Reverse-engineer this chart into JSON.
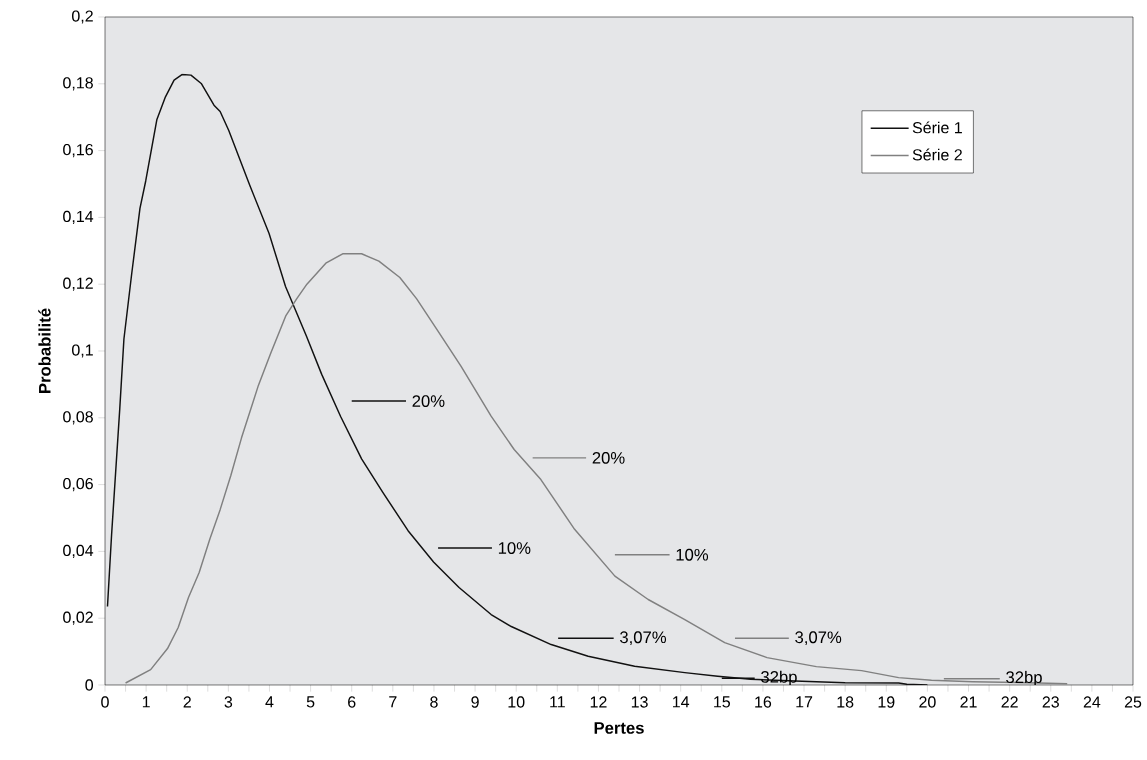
{
  "chart_data": {
    "type": "line",
    "xlabel": "Pertes",
    "ylabel": "Probabilité",
    "xlim": [
      0,
      25
    ],
    "ylim": [
      0,
      0.2
    ],
    "xticks": [
      0,
      {
        "value": 0.5,
        "label": null
      },
      1,
      {
        "value": 1.5,
        "label": null
      },
      2,
      {
        "value": 2.5,
        "label": null
      },
      3,
      {
        "value": 3.5,
        "label": null
      },
      4,
      {
        "value": 4.5,
        "label": null
      },
      5,
      {
        "value": 5.5,
        "label": null
      },
      6,
      {
        "value": 6.5,
        "label": null
      },
      7,
      {
        "value": 7.5,
        "label": null
      },
      8,
      {
        "value": 8.5,
        "label": null
      },
      9,
      {
        "value": 9.5,
        "label": null
      },
      10,
      {
        "value": 10.5,
        "label": null
      },
      11,
      {
        "value": 11.5,
        "label": null
      },
      12,
      {
        "value": 12.5,
        "label": null
      },
      13,
      {
        "value": 13.5,
        "label": null
      },
      14,
      {
        "value": 14.5,
        "label": null
      },
      15,
      {
        "value": 15.5,
        "label": null
      },
      16,
      {
        "value": 16.5,
        "label": null
      },
      17,
      {
        "value": 17.5,
        "label": null
      },
      18,
      {
        "value": 18.5,
        "label": null
      },
      19,
      {
        "value": 19.5,
        "label": null
      },
      20,
      {
        "value": 20.5,
        "label": null
      },
      21,
      {
        "value": 21.5,
        "label": null
      },
      22,
      {
        "value": 22.5,
        "label": null
      },
      23,
      {
        "value": 23.5,
        "label": null
      },
      24,
      {
        "value": 24.5,
        "label": null
      },
      25
    ],
    "yticks": [
      0,
      {
        "value": 0.02,
        "label": "0,02"
      },
      {
        "value": 0.04,
        "label": "0,04"
      },
      {
        "value": 0.06,
        "label": "0,06"
      },
      {
        "value": 0.08,
        "label": "0,08"
      },
      {
        "value": 0.1,
        "label": "0,1"
      },
      {
        "value": 0.12,
        "label": "0,12"
      },
      {
        "value": 0.14,
        "label": "0,14"
      },
      {
        "value": 0.16,
        "label": "0,16"
      },
      {
        "value": 0.18,
        "label": "0,18"
      },
      {
        "value": 0.2,
        "label": "0,2"
      }
    ],
    "grid": false,
    "legend": "top right",
    "marker": "none",
    "line_style": "solid",
    "series": [
      {
        "name": "Série 1",
        "color": "#111111",
        "x": [
          0.06,
          0.16,
          0.36,
          0.46,
          0.65,
          0.85,
          0.99,
          1.26,
          1.47,
          1.68,
          1.88,
          2.09,
          2.34,
          2.65,
          2.8,
          3.01,
          3.52,
          3.99,
          4.39,
          4.9,
          5.27,
          5.73,
          6.24,
          6.76,
          7.37,
          7.99,
          8.61,
          9.39,
          9.88,
          10.85,
          11.75,
          12.88,
          14.1,
          14.9,
          15.7,
          16.95,
          18.0,
          19.3,
          19.5,
          20.0
        ],
        "values": [
          0.0235,
          0.045,
          0.0829,
          0.1036,
          0.1232,
          0.1427,
          0.1509,
          0.1692,
          0.1761,
          0.1811,
          0.1828,
          0.1826,
          0.1801,
          0.1736,
          0.1717,
          0.166,
          0.1496,
          0.1352,
          0.1193,
          0.1044,
          0.093,
          0.0804,
          0.0677,
          0.0576,
          0.0462,
          0.0368,
          0.0292,
          0.0211,
          0.0175,
          0.0121,
          0.0086,
          0.0056,
          0.0037,
          0.0026,
          0.0017,
          0.0011,
          0.0007,
          0.0006,
          0.0002,
          0
        ]
      },
      {
        "name": "Série 2",
        "color": "#808080",
        "x": [
          0.5,
          1.11,
          1.52,
          1.78,
          2.03,
          2.29,
          2.55,
          2.8,
          3.06,
          3.32,
          3.73,
          4.03,
          4.4,
          4.66,
          4.91,
          5.37,
          5.78,
          6.24,
          6.66,
          7.17,
          7.58,
          8.09,
          8.66,
          9.39,
          9.95,
          10.6,
          11.42,
          12.4,
          13.21,
          14.1,
          15.07,
          16.1,
          17.3,
          18.4,
          19.3,
          20.1,
          21.1,
          22.7,
          23.4
        ],
        "values": [
          0.0006,
          0.0046,
          0.0109,
          0.0172,
          0.0262,
          0.0337,
          0.0437,
          0.0525,
          0.0627,
          0.074,
          0.0897,
          0.0993,
          0.1106,
          0.1156,
          0.12,
          0.1263,
          0.1291,
          0.1291,
          0.1269,
          0.122,
          0.1156,
          0.1061,
          0.0954,
          0.0805,
          0.0705,
          0.0615,
          0.0466,
          0.0326,
          0.0256,
          0.0196,
          0.0127,
          0.0082,
          0.0055,
          0.0043,
          0.0022,
          0.0014,
          0.001,
          0.0006,
          0.0004
        ]
      },
      {
        "color": "#111111",
        "x": [
          6.0,
          7.32
        ],
        "values": [
          0.085,
          0.085
        ]
      },
      {
        "color": "#111111",
        "x": [
          8.1,
          9.41
        ],
        "values": [
          0.041,
          0.041
        ]
      },
      {
        "color": "#111111",
        "x": [
          11.02,
          12.37
        ],
        "values": [
          0.014,
          0.014
        ]
      },
      {
        "color": "#111111",
        "x": [
          15.0,
          15.8
        ],
        "values": [
          0.002,
          0.002
        ]
      },
      {
        "color": "#808080",
        "x": [
          10.4,
          11.7
        ],
        "values": [
          0.068,
          0.068
        ]
      },
      {
        "color": "#808080",
        "x": [
          12.4,
          13.73
        ],
        "values": [
          0.039,
          0.039
        ]
      },
      {
        "color": "#808080",
        "x": [
          15.32,
          16.63
        ],
        "values": [
          0.014,
          0.014
        ]
      },
      {
        "color": "#808080",
        "x": [
          20.4,
          21.76
        ],
        "values": [
          0.0019,
          0.0019
        ]
      }
    ],
    "annotations": [
      {
        "text": "20%",
        "x": 7.42,
        "y": 0.085
      },
      {
        "text": "10%",
        "x": 9.51,
        "y": 0.041
      },
      {
        "text": "3,07%",
        "x": 12.47,
        "y": 0.014
      },
      {
        "text": "32bp",
        "x": 15.9,
        "y": 0.002
      },
      {
        "text": "20%",
        "x": 11.8,
        "y": 0.068
      },
      {
        "text": "10%",
        "x": 13.83,
        "y": 0.039
      },
      {
        "text": "3,07%",
        "x": 16.73,
        "y": 0.014
      },
      {
        "text": "32bp",
        "x": 21.86,
        "y": 0.0019
      }
    ]
  }
}
